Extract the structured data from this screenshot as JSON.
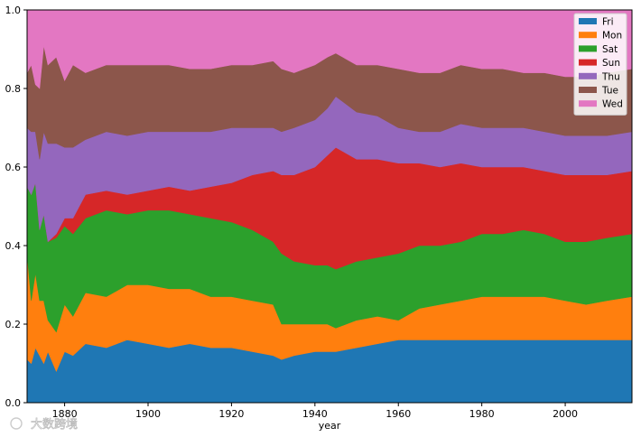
{
  "watermark": {
    "text": "大数跨境"
  },
  "chart_data": {
    "type": "area",
    "stacked": true,
    "title": "",
    "xlabel": "year",
    "ylabel": "",
    "xlim": [
      1871,
      2016
    ],
    "ylim": [
      0,
      1.0
    ],
    "xticks": [
      "1880",
      "1900",
      "1920",
      "1940",
      "1960",
      "1980",
      "2000"
    ],
    "yticks": [
      "0.0",
      "0.2",
      "0.4",
      "0.6",
      "0.8",
      "1.0"
    ],
    "grid": false,
    "legend_position": "top-right",
    "x": [
      1871,
      1872,
      1873,
      1874,
      1875,
      1876,
      1878,
      1880,
      1882,
      1885,
      1890,
      1895,
      1900,
      1905,
      1910,
      1915,
      1920,
      1925,
      1930,
      1932,
      1935,
      1940,
      1943,
      1945,
      1950,
      1955,
      1960,
      1965,
      1970,
      1975,
      1980,
      1985,
      1990,
      1995,
      2000,
      2005,
      2010,
      2016
    ],
    "series": [
      {
        "name": "Fri",
        "color": "#1f77b4",
        "values": [
          0.11,
          0.1,
          0.14,
          0.12,
          0.1,
          0.13,
          0.08,
          0.13,
          0.12,
          0.15,
          0.14,
          0.16,
          0.15,
          0.14,
          0.15,
          0.14,
          0.14,
          0.13,
          0.12,
          0.11,
          0.12,
          0.13,
          0.13,
          0.13,
          0.14,
          0.15,
          0.16,
          0.16,
          0.16,
          0.16,
          0.16,
          0.16,
          0.16,
          0.16,
          0.16,
          0.16,
          0.16,
          0.16
        ]
      },
      {
        "name": "Mon",
        "color": "#ff7f0e",
        "values": [
          0.27,
          0.16,
          0.19,
          0.14,
          0.16,
          0.08,
          0.1,
          0.12,
          0.1,
          0.13,
          0.13,
          0.14,
          0.15,
          0.15,
          0.14,
          0.13,
          0.13,
          0.13,
          0.13,
          0.09,
          0.08,
          0.07,
          0.07,
          0.06,
          0.07,
          0.07,
          0.05,
          0.08,
          0.09,
          0.1,
          0.11,
          0.11,
          0.11,
          0.11,
          0.1,
          0.09,
          0.1,
          0.11
        ]
      },
      {
        "name": "Sat",
        "color": "#2ca02c",
        "values": [
          0.17,
          0.27,
          0.23,
          0.18,
          0.22,
          0.2,
          0.24,
          0.2,
          0.21,
          0.19,
          0.22,
          0.18,
          0.19,
          0.2,
          0.19,
          0.2,
          0.19,
          0.18,
          0.16,
          0.18,
          0.16,
          0.15,
          0.15,
          0.15,
          0.15,
          0.15,
          0.17,
          0.16,
          0.15,
          0.15,
          0.16,
          0.16,
          0.17,
          0.16,
          0.15,
          0.16,
          0.16,
          0.16
        ]
      },
      {
        "name": "Sun",
        "color": "#d62728",
        "values": [
          0.0,
          0.0,
          0.0,
          0.0,
          0.0,
          0.0,
          0.01,
          0.02,
          0.04,
          0.06,
          0.05,
          0.05,
          0.05,
          0.06,
          0.06,
          0.08,
          0.1,
          0.14,
          0.18,
          0.2,
          0.22,
          0.25,
          0.28,
          0.31,
          0.26,
          0.25,
          0.23,
          0.21,
          0.2,
          0.2,
          0.17,
          0.17,
          0.16,
          0.16,
          0.17,
          0.17,
          0.16,
          0.16
        ]
      },
      {
        "name": "Thu",
        "color": "#9467bd",
        "values": [
          0.15,
          0.16,
          0.13,
          0.18,
          0.21,
          0.25,
          0.23,
          0.18,
          0.18,
          0.14,
          0.15,
          0.15,
          0.15,
          0.14,
          0.15,
          0.14,
          0.14,
          0.12,
          0.11,
          0.11,
          0.12,
          0.12,
          0.12,
          0.13,
          0.12,
          0.11,
          0.09,
          0.08,
          0.09,
          0.1,
          0.1,
          0.1,
          0.1,
          0.1,
          0.1,
          0.1,
          0.1,
          0.1
        ]
      },
      {
        "name": "Tue",
        "color": "#8c564b",
        "values": [
          0.14,
          0.17,
          0.12,
          0.18,
          0.22,
          0.2,
          0.22,
          0.17,
          0.21,
          0.17,
          0.17,
          0.18,
          0.17,
          0.17,
          0.16,
          0.16,
          0.16,
          0.16,
          0.17,
          0.16,
          0.14,
          0.14,
          0.13,
          0.11,
          0.12,
          0.13,
          0.15,
          0.15,
          0.15,
          0.15,
          0.15,
          0.15,
          0.14,
          0.15,
          0.15,
          0.15,
          0.16,
          0.16
        ]
      },
      {
        "name": "Wed",
        "color": "#e377c2",
        "values": [
          0.16,
          0.14,
          0.19,
          0.2,
          0.09,
          0.14,
          0.12,
          0.18,
          0.14,
          0.16,
          0.14,
          0.14,
          0.14,
          0.14,
          0.15,
          0.15,
          0.14,
          0.14,
          0.13,
          0.15,
          0.16,
          0.14,
          0.12,
          0.11,
          0.14,
          0.14,
          0.15,
          0.16,
          0.16,
          0.14,
          0.15,
          0.15,
          0.16,
          0.16,
          0.17,
          0.17,
          0.16,
          0.15
        ]
      }
    ]
  }
}
